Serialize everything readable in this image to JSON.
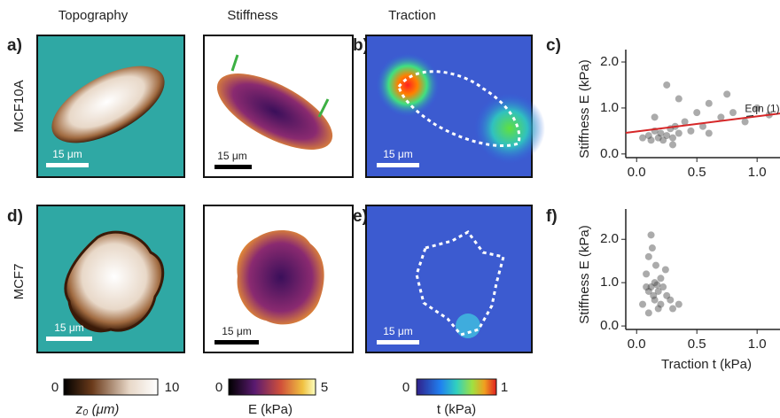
{
  "column_titles": [
    "Topography",
    "Stiffness",
    "Traction"
  ],
  "row_labels": [
    "MCF10A",
    "MCF7"
  ],
  "panel_labels": [
    "a)",
    "b)",
    "c)",
    "d)",
    "e)",
    "f)"
  ],
  "scale_bars": [
    "15 μm",
    "15 μm",
    "15 μm",
    "15 μm",
    "15 μm",
    "15 μm"
  ],
  "colorbars": [
    {
      "min": 0,
      "max": 10,
      "label": "z₀ (μm)"
    },
    {
      "min": 0,
      "max": 5,
      "label": "E (kPa)"
    },
    {
      "min": 0,
      "max": 1,
      "label": "t (kPa)"
    }
  ],
  "chart_data": [
    {
      "type": "scatter",
      "ylabel": "Stiffness E (kPa)",
      "color": "#444444",
      "xlim": [
        -0.09,
        1.19
      ],
      "ylim": [
        -0.08,
        2.27
      ],
      "xticks": [
        {
          "value": 0,
          "label": "0.0"
        },
        {
          "value": 0.5,
          "label": "0.5"
        },
        {
          "value": 1,
          "label": "1.0"
        }
      ],
      "yticks": [
        {
          "value": 0,
          "label": "0.0"
        },
        {
          "value": 1,
          "label": "1.0"
        },
        {
          "value": 2,
          "label": "2.0"
        }
      ],
      "x": [
        0.05,
        0.1,
        0.12,
        0.15,
        0.18,
        0.2,
        0.22,
        0.25,
        0.28,
        0.3,
        0.32,
        0.35,
        0.4,
        0.45,
        0.5,
        0.55,
        0.6,
        0.7,
        0.8,
        0.9,
        1.0,
        1.1,
        0.15,
        0.25,
        0.35,
        0.6,
        0.3,
        0.75
      ],
      "values": [
        0.35,
        0.4,
        0.3,
        0.5,
        0.35,
        0.45,
        0.3,
        0.4,
        0.55,
        0.35,
        0.6,
        0.45,
        0.7,
        0.5,
        0.9,
        0.6,
        1.1,
        0.8,
        0.9,
        0.7,
        1.0,
        0.85,
        0.8,
        1.5,
        1.2,
        0.45,
        0.2,
        1.3
      ],
      "fit": {
        "label": "Eqn (1)",
        "color": "#d62728",
        "x": [
          -0.09,
          1.19
        ],
        "y": [
          0.46,
          0.88
        ]
      }
    },
    {
      "type": "scatter",
      "ylabel": "Stiffness E (kPa)",
      "xlabel": "Traction t (kPa)",
      "color": "#444444",
      "xlim": [
        -0.09,
        1.19
      ],
      "ylim": [
        -0.08,
        2.7
      ],
      "xticks": [
        {
          "value": 0,
          "label": "0.0"
        },
        {
          "value": 0.5,
          "label": "0.5"
        },
        {
          "value": 1,
          "label": "1.0"
        }
      ],
      "yticks": [
        {
          "value": 0,
          "label": "0.0"
        },
        {
          "value": 1,
          "label": "1.0"
        },
        {
          "value": 2,
          "label": "2.0"
        }
      ],
      "x": [
        0.05,
        0.08,
        0.1,
        0.1,
        0.12,
        0.12,
        0.14,
        0.15,
        0.15,
        0.16,
        0.18,
        0.18,
        0.2,
        0.2,
        0.22,
        0.25,
        0.28,
        0.3,
        0.1,
        0.13,
        0.17,
        0.08,
        0.24,
        0.35
      ],
      "values": [
        0.5,
        1.2,
        0.8,
        1.6,
        0.9,
        2.1,
        0.7,
        1.0,
        0.6,
        1.4,
        0.8,
        0.4,
        1.1,
        0.5,
        0.9,
        0.7,
        0.6,
        0.4,
        0.3,
        1.8,
        0.95,
        0.9,
        1.3,
        0.5
      ]
    }
  ]
}
